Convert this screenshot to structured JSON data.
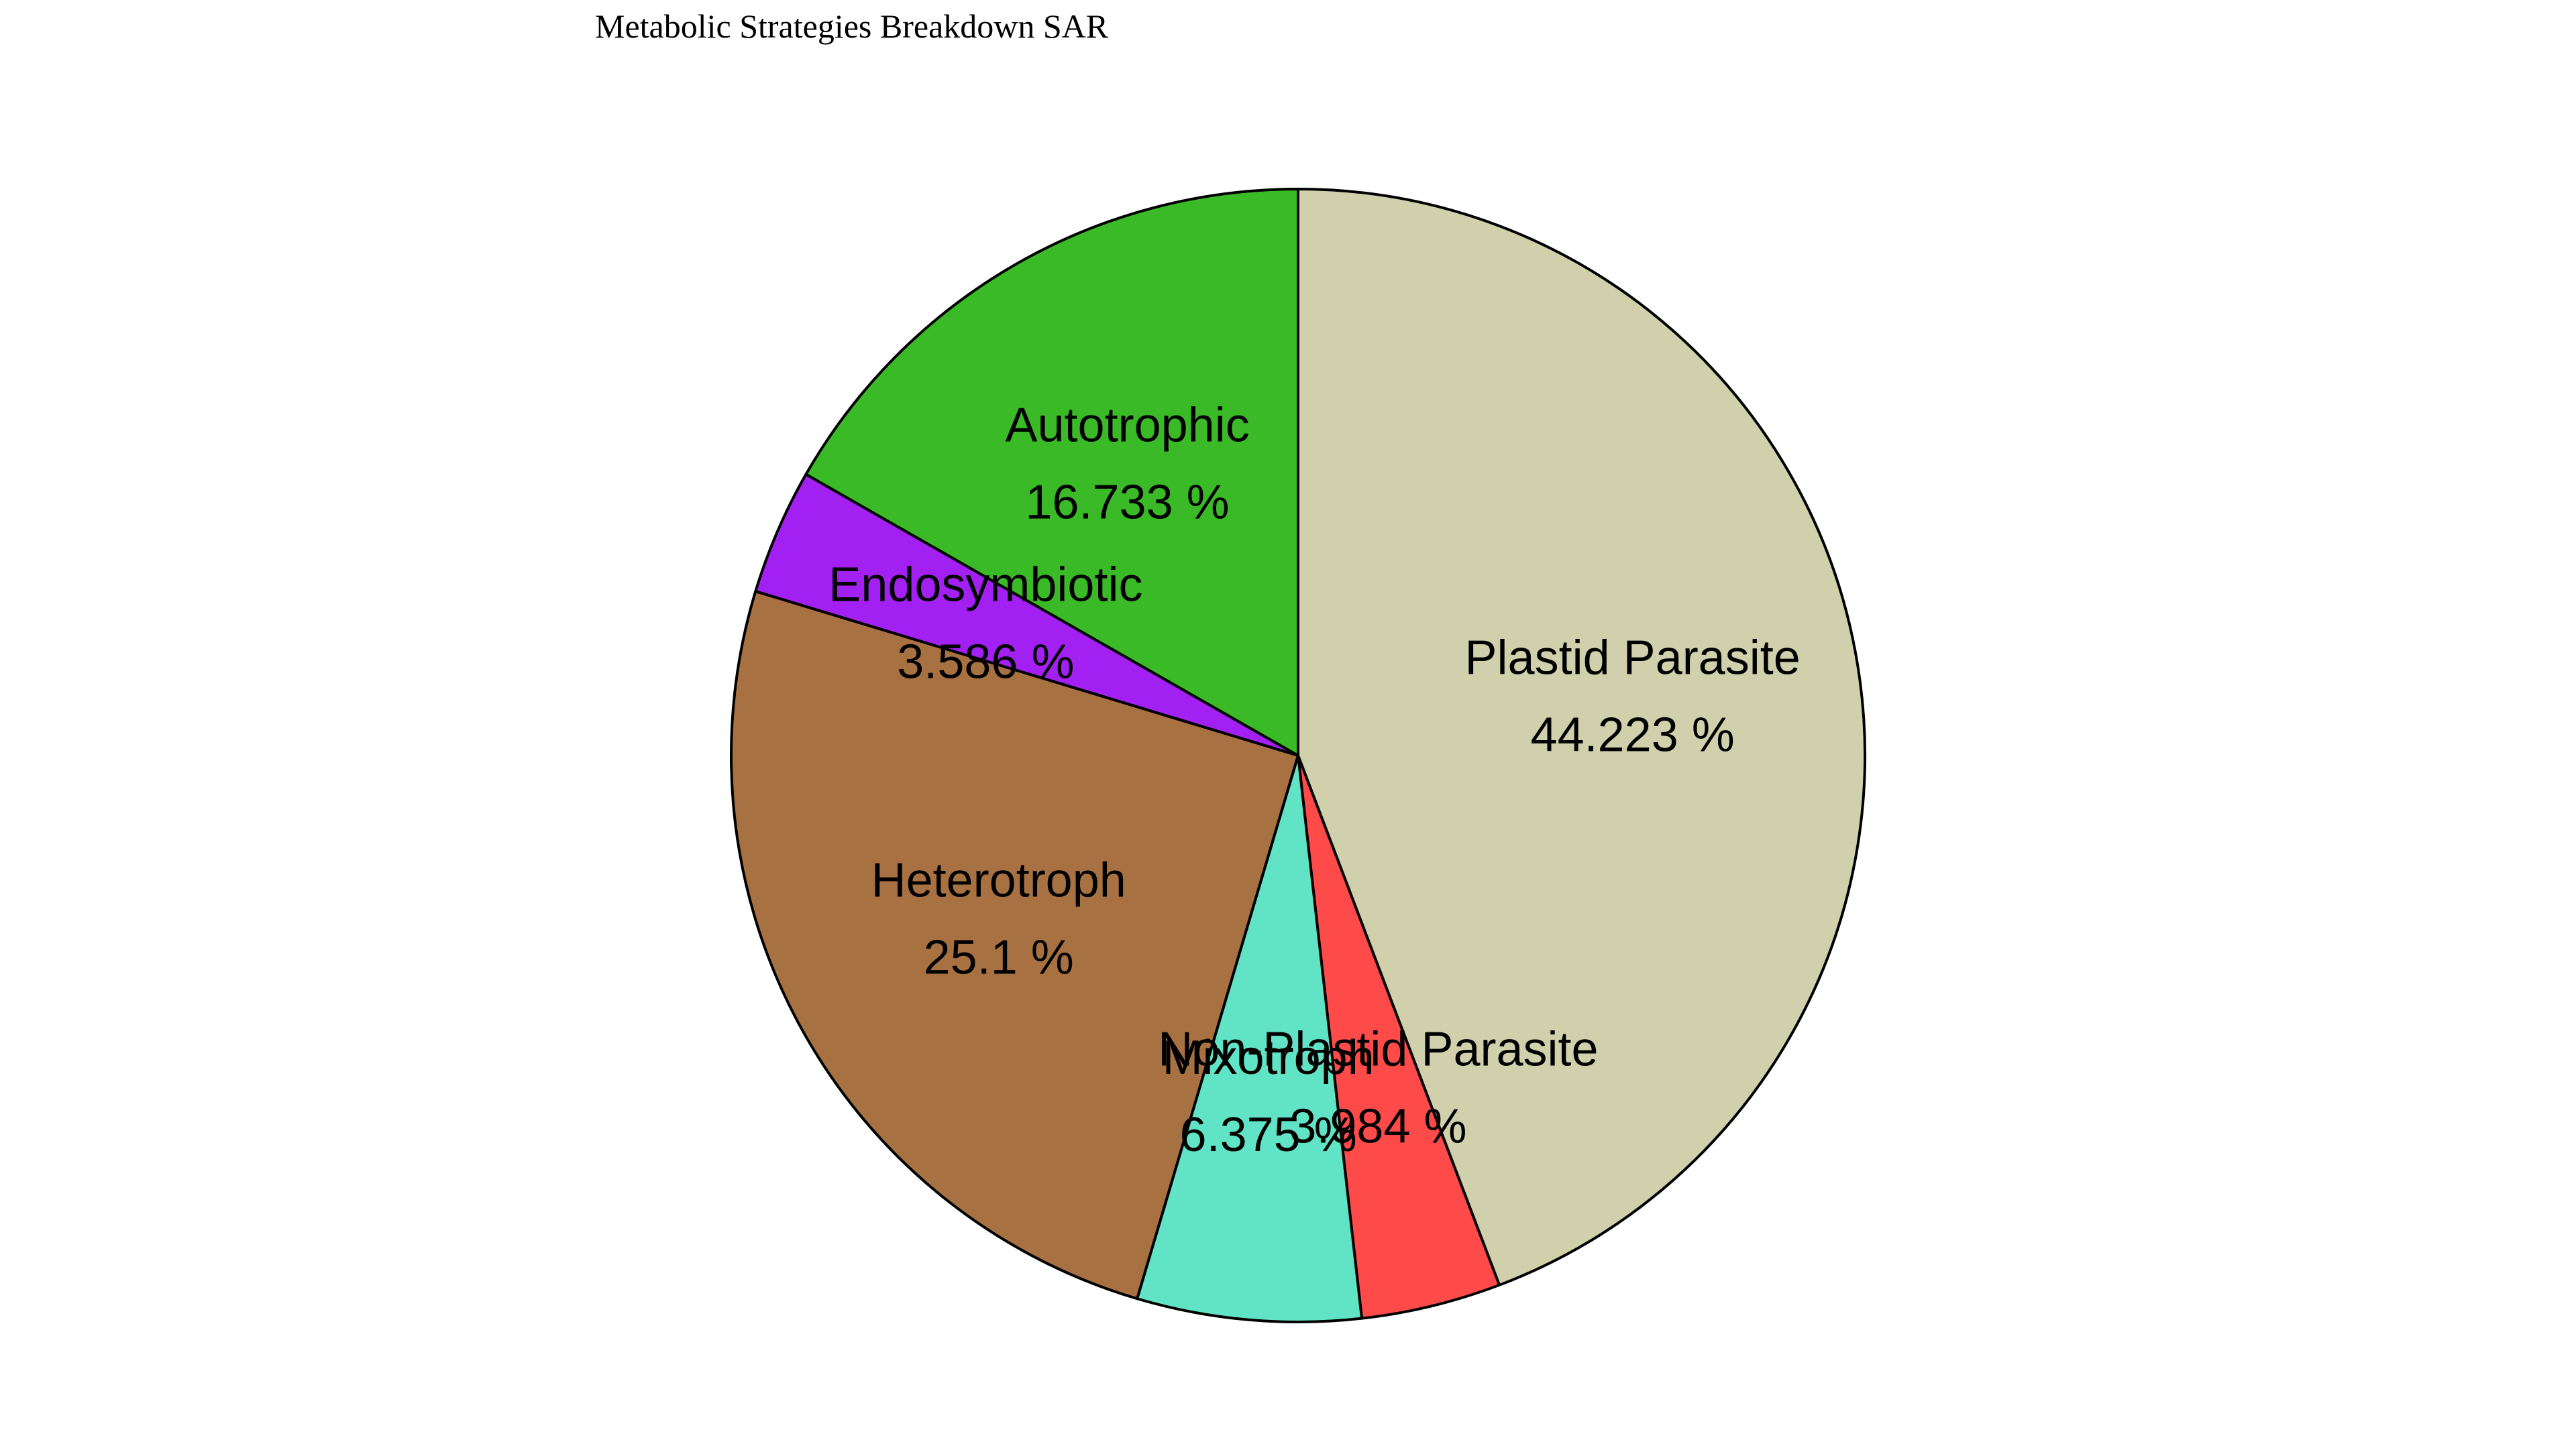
{
  "chart_data": {
    "type": "pie",
    "title": "Metabolic Strategies Breakdown SAR",
    "start_angle": "top",
    "direction": "clockwise",
    "edge_color": "#000000",
    "slices": [
      {
        "label": "Plastid Parasite",
        "value": 44.223,
        "pct_label": "44.223 %",
        "color": "#d0d0ac"
      },
      {
        "label": "Non-Plastid Parasite",
        "value": 3.984,
        "pct_label": "3.984 %",
        "color": "#ff4a4a"
      },
      {
        "label": "Mixotroph",
        "value": 6.375,
        "pct_label": "6.375 %",
        "color": "#61e3c5"
      },
      {
        "label": "Heterotroph",
        "value": 25.1,
        "pct_label": "25.1 %",
        "color": "#a87142"
      },
      {
        "label": "Endosymbiotic",
        "value": 3.586,
        "pct_label": "3.586 %",
        "color": "#a221f2"
      },
      {
        "label": "Autotrophic",
        "value": 16.733,
        "pct_label": "16.733 %",
        "color": "#3bba27"
      }
    ]
  }
}
